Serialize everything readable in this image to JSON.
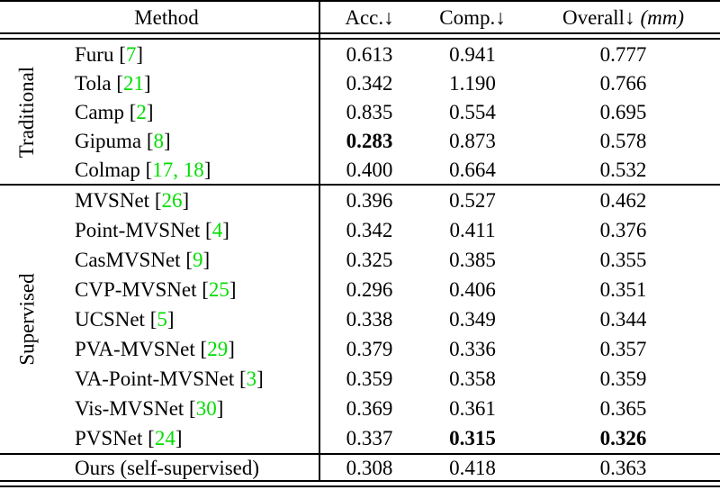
{
  "colors": {
    "citation_green": "#00dd00",
    "text": "#000000",
    "background": "#ffffff"
  },
  "punct": {
    "cite_open": " [",
    "cite_close": "]"
  },
  "table": {
    "header": {
      "method": "Method",
      "acc": "Acc.↓",
      "comp": "Comp.↓",
      "overall": "Overall↓",
      "overall_unit": "(mm)"
    },
    "groups": [
      {
        "label": "Traditional",
        "rows": [
          {
            "name": "Furu",
            "cite": "7",
            "acc": "0.613",
            "comp": "0.941",
            "overall": "0.777",
            "bold": []
          },
          {
            "name": "Tola",
            "cite": "21",
            "acc": "0.342",
            "comp": "1.190",
            "overall": "0.766",
            "bold": []
          },
          {
            "name": "Camp",
            "cite": "2",
            "acc": "0.835",
            "comp": "0.554",
            "overall": "0.695",
            "bold": []
          },
          {
            "name": "Gipuma",
            "cite": "8",
            "acc": "0.283",
            "comp": "0.873",
            "overall": "0.578",
            "bold": [
              "acc"
            ]
          },
          {
            "name": "Colmap",
            "cite": "17, 18",
            "acc": "0.400",
            "comp": "0.664",
            "overall": "0.532",
            "bold": []
          }
        ]
      },
      {
        "label": "Supervised",
        "rows": [
          {
            "name": "MVSNet",
            "cite": "26",
            "acc": "0.396",
            "comp": "0.527",
            "overall": "0.462",
            "bold": []
          },
          {
            "name": "Point-MVSNet",
            "cite": "4",
            "acc": "0.342",
            "comp": "0.411",
            "overall": "0.376",
            "bold": []
          },
          {
            "name": "CasMVSNet",
            "cite": "9",
            "acc": "0.325",
            "comp": "0.385",
            "overall": "0.355",
            "bold": []
          },
          {
            "name": "CVP-MVSNet",
            "cite": "25",
            "acc": "0.296",
            "comp": "0.406",
            "overall": "0.351",
            "bold": []
          },
          {
            "name": "UCSNet",
            "cite": "5",
            "acc": "0.338",
            "comp": "0.349",
            "overall": "0.344",
            "bold": []
          },
          {
            "name": "PVA-MVSNet",
            "cite": "29",
            "acc": "0.379",
            "comp": "0.336",
            "overall": "0.357",
            "bold": []
          },
          {
            "name": "VA-Point-MVSNet",
            "cite": "3",
            "acc": "0.359",
            "comp": "0.358",
            "overall": "0.359",
            "bold": []
          },
          {
            "name": "Vis-MVSNet",
            "cite": "30",
            "acc": "0.369",
            "comp": "0.361",
            "overall": "0.365",
            "bold": []
          },
          {
            "name": "PVSNet",
            "cite": "24",
            "acc": "0.337",
            "comp": "0.315",
            "overall": "0.326",
            "bold": [
              "comp",
              "overall"
            ]
          }
        ]
      }
    ],
    "footer": {
      "name": "Ours (self-supervised)",
      "acc": "0.308",
      "comp": "0.418",
      "overall": "0.363"
    }
  }
}
